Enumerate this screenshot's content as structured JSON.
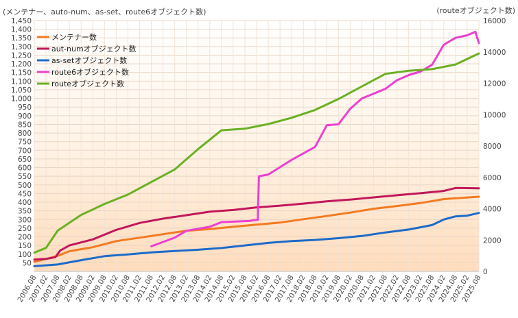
{
  "chart_data": {
    "type": "line",
    "left_axis_title": "(メンテナー、auto-num、as-set、route6オブジェクト数)",
    "right_axis_title": "(routeオブジェクト数)",
    "ylim_left": [
      0,
      1450
    ],
    "ylim_right": [
      0,
      16000
    ],
    "grid": true,
    "legend_position": "top-left",
    "y_ticks_left": [
      "50",
      "100",
      "150",
      "200",
      "250",
      "300",
      "350",
      "400",
      "450",
      "500",
      "550",
      "600",
      "650",
      "700",
      "750",
      "800",
      "850",
      "900",
      "950",
      "1,000",
      "1,050",
      "1,100",
      "1,150",
      "1,200",
      "1,250",
      "1,300",
      "1,350",
      "1,400",
      "1,450"
    ],
    "y_ticks_right": [
      "0",
      "2000",
      "4000",
      "6000",
      "8000",
      "10000",
      "12000",
      "14000",
      "16000"
    ],
    "x_ticks": [
      "2006.08",
      "2007.02",
      "2007.08",
      "2008.02",
      "2008.08",
      "2009.02",
      "2009.08",
      "2010.02",
      "2010.08",
      "2011.02",
      "2011.08",
      "2012.02",
      "2012.08",
      "2013.02",
      "2013.08",
      "2014.02",
      "2014.08",
      "2015.02",
      "2015.08",
      "2016.02",
      "2016.08",
      "2017.02",
      "2017.08",
      "2018.02",
      "2018.08",
      "2019.02",
      "2019.08",
      "2020.02",
      "2020.08",
      "2021.02",
      "2021.08",
      "2022.02",
      "2022.08",
      "2023.02",
      "2023.08",
      "2024.02",
      "2024.08",
      "2025.02",
      "2025.08"
    ],
    "series": [
      {
        "name": "メンテナー数",
        "color": "#f47a20",
        "axis": "left",
        "points": [
          [
            0,
            55
          ],
          [
            2,
            90
          ],
          [
            3,
            117
          ],
          [
            5,
            140
          ],
          [
            7,
            175
          ],
          [
            9,
            195
          ],
          [
            11,
            215
          ],
          [
            13,
            235
          ],
          [
            15,
            245
          ],
          [
            17,
            258
          ],
          [
            19,
            270
          ],
          [
            21,
            282
          ],
          [
            23,
            302
          ],
          [
            25,
            320
          ],
          [
            27,
            340
          ],
          [
            29,
            362
          ],
          [
            31,
            378
          ],
          [
            33,
            395
          ],
          [
            35,
            418
          ],
          [
            38,
            432
          ]
        ]
      },
      {
        "name": "aut-numオブジェクト数",
        "color": "#c2175b",
        "axis": "left",
        "points": [
          [
            0,
            68
          ],
          [
            1,
            72
          ],
          [
            1.8,
            82
          ],
          [
            2.2,
            120
          ],
          [
            3,
            150
          ],
          [
            5,
            185
          ],
          [
            7,
            240
          ],
          [
            9,
            280
          ],
          [
            11,
            305
          ],
          [
            13,
            325
          ],
          [
            15,
            345
          ],
          [
            17,
            355
          ],
          [
            19,
            370
          ],
          [
            21,
            380
          ],
          [
            23,
            392
          ],
          [
            25,
            405
          ],
          [
            27,
            415
          ],
          [
            29,
            428
          ],
          [
            31,
            440
          ],
          [
            33,
            452
          ],
          [
            35,
            465
          ],
          [
            36,
            482
          ],
          [
            38,
            480
          ]
        ]
      },
      {
        "name": "as-setオブジェクト数",
        "color": "#1e6ac9",
        "axis": "left",
        "points": [
          [
            0,
            30
          ],
          [
            2,
            40
          ],
          [
            4,
            65
          ],
          [
            6,
            88
          ],
          [
            8,
            98
          ],
          [
            10,
            110
          ],
          [
            12,
            118
          ],
          [
            14,
            125
          ],
          [
            16,
            135
          ],
          [
            18,
            150
          ],
          [
            20,
            165
          ],
          [
            22,
            175
          ],
          [
            24,
            182
          ],
          [
            26,
            192
          ],
          [
            28,
            205
          ],
          [
            30,
            225
          ],
          [
            32,
            242
          ],
          [
            34,
            268
          ],
          [
            35,
            300
          ],
          [
            36,
            318
          ],
          [
            37,
            322
          ],
          [
            38,
            338
          ]
        ]
      },
      {
        "name": "route6オブジェクト数",
        "color": "#ec3fd0",
        "axis": "left",
        "points": [
          [
            10,
            145
          ],
          [
            12,
            195
          ],
          [
            13,
            235
          ],
          [
            15,
            258
          ],
          [
            16,
            285
          ],
          [
            18.5,
            292
          ],
          [
            18.6,
            295
          ],
          [
            19.1,
            298
          ],
          [
            19.2,
            550
          ],
          [
            20,
            560
          ],
          [
            22,
            645
          ],
          [
            24,
            720
          ],
          [
            25,
            845
          ],
          [
            26,
            850
          ],
          [
            27,
            940
          ],
          [
            28,
            1000
          ],
          [
            30,
            1055
          ],
          [
            31,
            1105
          ],
          [
            32,
            1135
          ],
          [
            33,
            1155
          ],
          [
            34,
            1195
          ],
          [
            35,
            1310
          ],
          [
            36,
            1350
          ],
          [
            37,
            1365
          ],
          [
            37.7,
            1385
          ],
          [
            38,
            1320
          ]
        ]
      },
      {
        "name": "routeオブジェクト数",
        "color": "#6ab023",
        "axis": "right",
        "points": [
          [
            0,
            1200
          ],
          [
            1,
            1500
          ],
          [
            2,
            2600
          ],
          [
            4,
            3600
          ],
          [
            6,
            4300
          ],
          [
            8,
            4900
          ],
          [
            10,
            5700
          ],
          [
            12,
            6500
          ],
          [
            14,
            7800
          ],
          [
            15,
            8400
          ],
          [
            16,
            9000
          ],
          [
            18,
            9100
          ],
          [
            20,
            9400
          ],
          [
            22,
            9800
          ],
          [
            24,
            10300
          ],
          [
            26,
            11000
          ],
          [
            28,
            11800
          ],
          [
            30,
            12600
          ],
          [
            32,
            12800
          ],
          [
            34,
            12900
          ],
          [
            36,
            13200
          ],
          [
            38,
            13900
          ]
        ]
      }
    ]
  }
}
